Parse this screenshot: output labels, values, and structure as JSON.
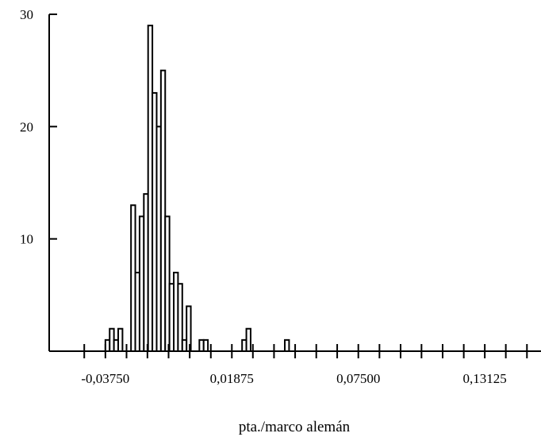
{
  "chart_data": {
    "type": "bar",
    "subtype": "histogram",
    "title": "",
    "xlabel": "pta./marco alemán",
    "ylabel": "",
    "x_range": [
      -0.0625,
      0.15625
    ],
    "y_range": [
      0,
      30
    ],
    "bin_width": 0.0019,
    "x_ticks": [
      -0.0375,
      0.01875,
      0.075,
      0.13125
    ],
    "x_tick_labels": [
      "-0,03750",
      "0,01875",
      "0,07500",
      "0,13125"
    ],
    "x_minor_ticks": [
      -0.0469,
      -0.0281,
      -0.0188,
      -0.0094,
      0.0,
      0.0094,
      0.0281,
      0.0375,
      0.0469,
      0.0563,
      0.0656,
      0.0844,
      0.0938,
      0.1031,
      0.1125,
      0.1219,
      0.1406,
      0.15
    ],
    "y_ticks": [
      10,
      20,
      30
    ],
    "y_tick_labels": [
      "10",
      "20",
      "30"
    ],
    "grid": false,
    "bins": [
      {
        "x": -0.0375,
        "count": 1
      },
      {
        "x": -0.0356,
        "count": 2
      },
      {
        "x": -0.0337,
        "count": 1
      },
      {
        "x": -0.0318,
        "count": 2
      },
      {
        "x": -0.0261,
        "count": 13
      },
      {
        "x": -0.0242,
        "count": 7
      },
      {
        "x": -0.0223,
        "count": 12
      },
      {
        "x": -0.0204,
        "count": 14
      },
      {
        "x": -0.0185,
        "count": 29
      },
      {
        "x": -0.0166,
        "count": 23
      },
      {
        "x": -0.0147,
        "count": 20
      },
      {
        "x": -0.0128,
        "count": 25
      },
      {
        "x": -0.0109,
        "count": 12
      },
      {
        "x": -0.009,
        "count": 6
      },
      {
        "x": -0.0071,
        "count": 7
      },
      {
        "x": -0.0052,
        "count": 6
      },
      {
        "x": -0.0033,
        "count": 1
      },
      {
        "x": -0.0014,
        "count": 4
      },
      {
        "x": 0.0043,
        "count": 1
      },
      {
        "x": 0.0062,
        "count": 1
      },
      {
        "x": 0.0233,
        "count": 1
      },
      {
        "x": 0.0252,
        "count": 2
      },
      {
        "x": 0.0423,
        "count": 1
      }
    ]
  }
}
